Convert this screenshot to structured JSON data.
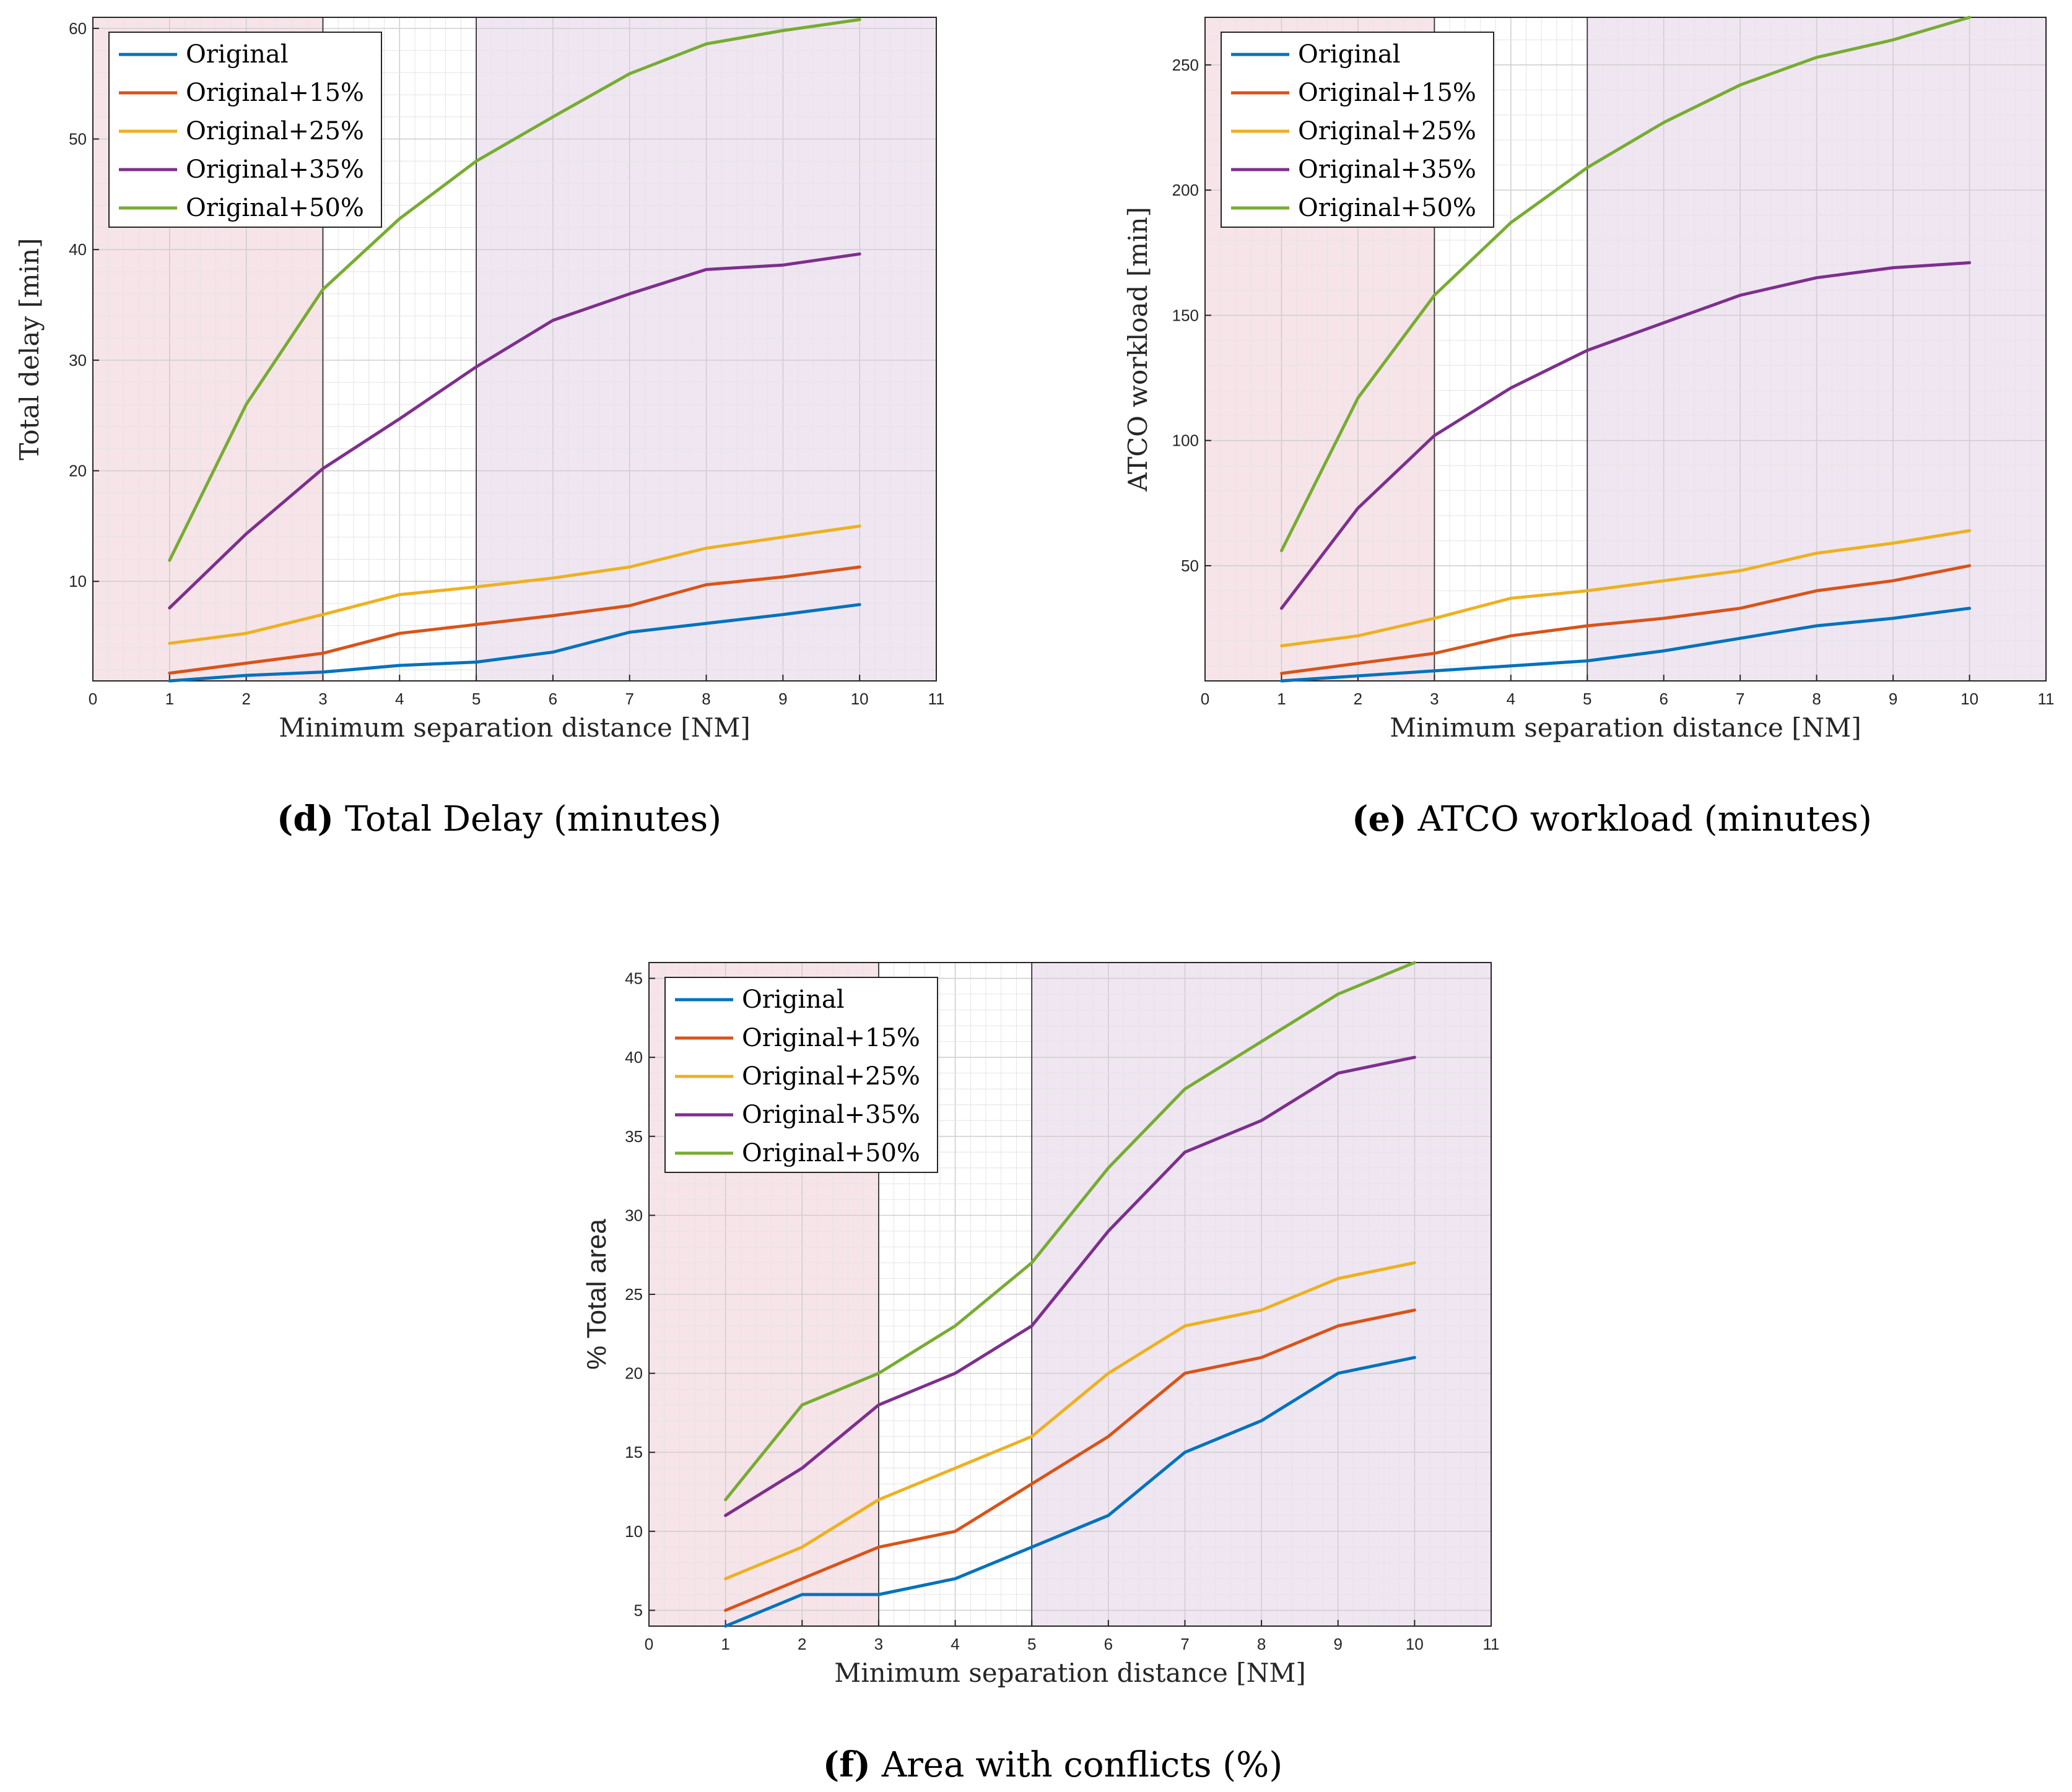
{
  "colors": {
    "Original": "#0072BD",
    "Original+15%": "#D95319",
    "Original+25%": "#EDB120",
    "Original+35%": "#7E2F8E",
    "Original+50%": "#77AC30",
    "region_red": "#f6e4e9",
    "region_purple": "#efe6f1"
  },
  "chart_data": [
    {
      "id": "d",
      "type": "line",
      "caption_letter": "d",
      "caption_text": "Total Delay (minutes)",
      "xlabel": "Minimum separation distance [NM]",
      "ylabel": "Total delay [min]",
      "xlim": [
        0,
        11
      ],
      "ylim": [
        1,
        61
      ],
      "xticks": [
        "0",
        "1",
        "2",
        "3",
        "4",
        "5",
        "6",
        "7",
        "8",
        "9",
        "10",
        "11"
      ],
      "yticks": [
        "10",
        "20",
        "30",
        "40",
        "50",
        "60"
      ],
      "ytick_values": [
        10,
        20,
        30,
        40,
        50,
        60
      ],
      "grid": true,
      "legend": "top-left",
      "shaded_regions": [
        {
          "from": 0,
          "to": 3,
          "color": "region_red"
        },
        {
          "from": 5,
          "to": 11,
          "color": "region_purple"
        }
      ],
      "x": [
        1,
        2,
        3,
        4,
        5,
        6,
        7,
        8,
        9,
        10
      ],
      "series": [
        {
          "name": "Original",
          "values": [
            1.0,
            1.5,
            1.8,
            2.4,
            2.7,
            3.6,
            5.4,
            6.2,
            7.0,
            7.9
          ]
        },
        {
          "name": "Original+15%",
          "values": [
            1.7,
            2.6,
            3.5,
            5.3,
            6.1,
            6.9,
            7.8,
            9.7,
            10.4,
            11.3
          ]
        },
        {
          "name": "Original+25%",
          "values": [
            4.4,
            5.3,
            7.0,
            8.8,
            9.5,
            10.3,
            11.3,
            13.0,
            14.0,
            15.0
          ]
        },
        {
          "name": "Original+35%",
          "values": [
            7.6,
            14.3,
            20.2,
            24.7,
            29.4,
            33.6,
            36.0,
            38.2,
            38.6,
            39.6
          ]
        },
        {
          "name": "Original+50%",
          "values": [
            11.9,
            26.0,
            36.4,
            42.8,
            48.0,
            52.0,
            55.9,
            58.6,
            59.8,
            60.8
          ]
        }
      ]
    },
    {
      "id": "e",
      "type": "line",
      "caption_letter": "e",
      "caption_text": "ATCO workload (minutes)",
      "xlabel": "Minimum separation distance [NM]",
      "ylabel": "ATCO workload [min]",
      "xlim": [
        0,
        11
      ],
      "ylim": [
        4,
        269
      ],
      "xticks": [
        "0",
        "1",
        "2",
        "3",
        "4",
        "5",
        "6",
        "7",
        "8",
        "9",
        "10",
        "11"
      ],
      "yticks": [
        "50",
        "100",
        "150",
        "200",
        "250"
      ],
      "ytick_values": [
        50,
        100,
        150,
        200,
        250
      ],
      "grid": true,
      "legend": "top-left",
      "shaded_regions": [
        {
          "from": 0,
          "to": 3,
          "color": "region_red"
        },
        {
          "from": 5,
          "to": 11,
          "color": "region_purple"
        }
      ],
      "x": [
        1,
        2,
        3,
        4,
        5,
        6,
        7,
        8,
        9,
        10
      ],
      "series": [
        {
          "name": "Original",
          "values": [
            4,
            6,
            8,
            10,
            12,
            16,
            21,
            26,
            29,
            33
          ]
        },
        {
          "name": "Original+15%",
          "values": [
            7,
            11,
            15,
            22,
            26,
            29,
            33,
            40,
            44,
            50
          ]
        },
        {
          "name": "Original+25%",
          "values": [
            18,
            22,
            29,
            37,
            40,
            44,
            48,
            55,
            59,
            64
          ]
        },
        {
          "name": "Original+35%",
          "values": [
            33,
            73,
            102,
            121,
            136,
            147,
            158,
            165,
            169,
            171
          ]
        },
        {
          "name": "Original+50%",
          "values": [
            56,
            117,
            158,
            187,
            209,
            227,
            242,
            253,
            260,
            269
          ]
        }
      ]
    },
    {
      "id": "f",
      "type": "line",
      "caption_letter": "f",
      "caption_text": "Area with conflicts (%)",
      "xlabel": "Minimum separation distance [NM]",
      "ylabel": "% Total area",
      "xlim": [
        0,
        11
      ],
      "ylim": [
        4,
        46
      ],
      "xticks": [
        "0",
        "1",
        "2",
        "3",
        "4",
        "5",
        "6",
        "7",
        "8",
        "9",
        "10",
        "11"
      ],
      "yticks": [
        "5",
        "10",
        "15",
        "20",
        "25",
        "30",
        "35",
        "40",
        "45"
      ],
      "ytick_values": [
        5,
        10,
        15,
        20,
        25,
        30,
        35,
        40,
        45
      ],
      "grid": true,
      "legend": "top-left",
      "shaded_regions": [
        {
          "from": 0,
          "to": 3,
          "color": "region_red"
        },
        {
          "from": 5,
          "to": 11,
          "color": "region_purple"
        }
      ],
      "x": [
        1,
        2,
        3,
        4,
        5,
        6,
        7,
        8,
        9,
        10
      ],
      "series": [
        {
          "name": "Original",
          "values": [
            4,
            6,
            6,
            7,
            9,
            11,
            15,
            17,
            20,
            21
          ]
        },
        {
          "name": "Original+15%",
          "values": [
            5,
            7,
            9,
            10,
            13,
            16,
            20,
            21,
            23,
            24
          ]
        },
        {
          "name": "Original+25%",
          "values": [
            7,
            9,
            12,
            14,
            16,
            20,
            23,
            24,
            26,
            27
          ]
        },
        {
          "name": "Original+35%",
          "values": [
            11,
            14,
            18,
            20,
            23,
            29,
            34,
            36,
            39,
            40
          ]
        },
        {
          "name": "Original+50%",
          "values": [
            12,
            18,
            20,
            23,
            27,
            33,
            38,
            41,
            44,
            46
          ]
        }
      ]
    }
  ]
}
